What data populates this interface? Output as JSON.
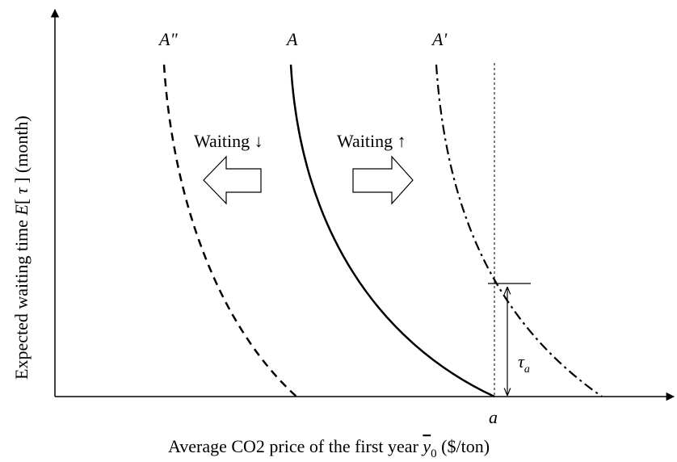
{
  "y_axis_label": {
    "part1": "Expected waiting time ",
    "E": "E",
    "part2": "[ ",
    "tau": "τ",
    "part3": " ] (month)"
  },
  "x_axis_label": {
    "part1": "Average CO2 price of the first year ",
    "y": "y",
    "sub": "0",
    "part2": " ($/ton)"
  },
  "curves": [
    {
      "label": "A\""
    },
    {
      "label": "A"
    },
    {
      "label": "A'"
    }
  ],
  "annotations": {
    "waiting_down": "Waiting ↓",
    "waiting_up": "Waiting ↑",
    "a": "a",
    "tau": "τ",
    "tau_sub": "a"
  }
}
